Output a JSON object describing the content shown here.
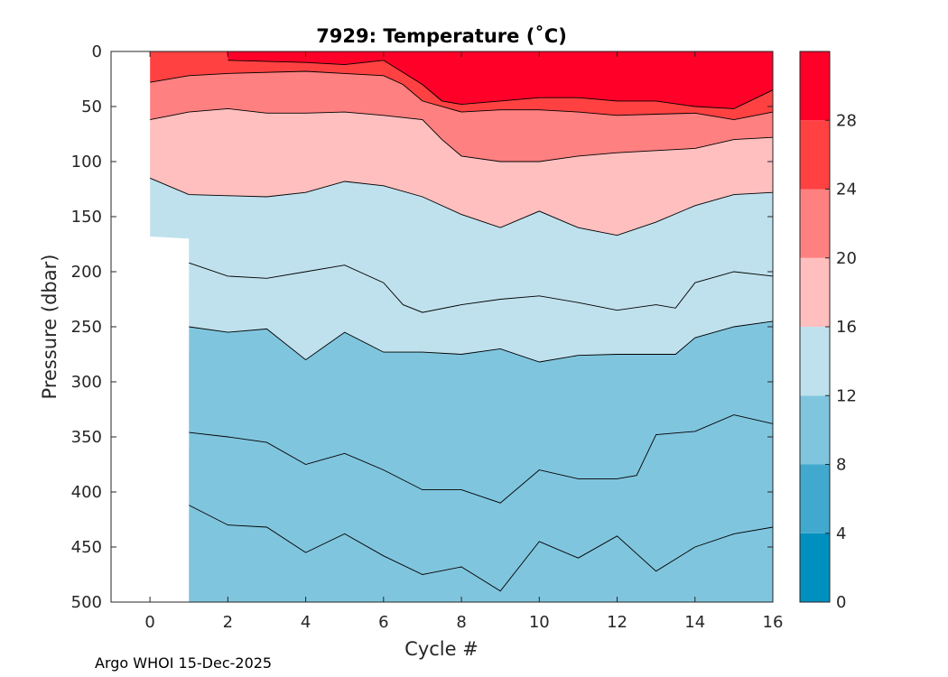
{
  "chart_data": {
    "type": "contourf",
    "title": "7929:  Temperature (˚C)",
    "xlabel": "Cycle #",
    "ylabel": "Pressure (dbar)",
    "xlim": [
      -1,
      16
    ],
    "ylim": [
      500,
      0
    ],
    "xticks": [
      0,
      2,
      4,
      6,
      8,
      10,
      12,
      14,
      16
    ],
    "yticks": [
      0,
      50,
      100,
      150,
      200,
      250,
      300,
      350,
      400,
      450,
      500
    ],
    "colorbar": {
      "levels": [
        0,
        4,
        8,
        12,
        16,
        20,
        24,
        28,
        32
      ],
      "tick_labels": [
        "0",
        "4",
        "8",
        "12",
        "16",
        "20",
        "24",
        "28"
      ],
      "colors": [
        "#0090bf",
        "#41a9cd",
        "#80c5de",
        "#bfe1ed",
        "#ffbfbf",
        "#ff8080",
        "#ff4141",
        "#ff0028"
      ]
    },
    "data_columns": {
      "cycles": [
        0,
        1,
        16
      ],
      "max_pressure_dbar": [
        168,
        500,
        500
      ]
    },
    "isotherms": [
      {
        "level": 26,
        "cycles": [
          2,
          4,
          5,
          6,
          7,
          7.5,
          8,
          9,
          10,
          11,
          12,
          13,
          14,
          15,
          16
        ],
        "pressure": [
          8,
          10,
          12,
          8,
          30,
          45,
          48,
          45,
          42,
          42,
          45,
          45,
          50,
          52,
          35
        ]
      },
      {
        "level": 24,
        "cycles": [
          0,
          1,
          2,
          4,
          5,
          6,
          6.5,
          7,
          8,
          9,
          10,
          11,
          12,
          13,
          14,
          15,
          16
        ],
        "pressure": [
          28,
          22,
          20,
          18,
          20,
          22,
          30,
          45,
          55,
          53,
          53,
          55,
          58,
          57,
          56,
          62,
          55
        ]
      },
      {
        "level": 20,
        "cycles": [
          0,
          1,
          2,
          3,
          4,
          5,
          6,
          7,
          7.5,
          8,
          9,
          10,
          11,
          12,
          13,
          14,
          15,
          16
        ],
        "pressure": [
          62,
          55,
          52,
          56,
          56,
          55,
          58,
          62,
          80,
          95,
          100,
          100,
          95,
          92,
          90,
          88,
          80,
          78
        ]
      },
      {
        "level": 16,
        "cycles": [
          0,
          1,
          2,
          3,
          4,
          5,
          6,
          7,
          8,
          9,
          10,
          11,
          12,
          13,
          14,
          15,
          16
        ],
        "pressure": [
          115,
          130,
          131,
          132,
          128,
          118,
          122,
          132,
          148,
          160,
          145,
          160,
          167,
          155,
          140,
          130,
          128
        ]
      },
      {
        "level": 14,
        "cycles": [
          1,
          2,
          3,
          4,
          5,
          6,
          6.5,
          7,
          8,
          9,
          10,
          11,
          12,
          13,
          13.5,
          14,
          15,
          16
        ],
        "pressure": [
          192,
          204,
          206,
          200,
          194,
          210,
          230,
          237,
          230,
          225,
          222,
          228,
          235,
          230,
          233,
          210,
          200,
          204
        ]
      },
      {
        "level": 12,
        "cycles": [
          1,
          2,
          3,
          4,
          5,
          6,
          7,
          8,
          9,
          10,
          11,
          12,
          13,
          13.5,
          14,
          15,
          16
        ],
        "pressure": [
          250,
          255,
          252,
          280,
          255,
          273,
          273,
          275,
          270,
          282,
          276,
          275,
          275,
          275,
          260,
          250,
          245
        ]
      },
      {
        "level": 10,
        "cycles": [
          1,
          2,
          3,
          4,
          5,
          6,
          7,
          8,
          9,
          10,
          11,
          12,
          12.5,
          13,
          14,
          15,
          16
        ],
        "pressure": [
          346,
          350,
          355,
          375,
          365,
          380,
          398,
          398,
          410,
          380,
          388,
          388,
          385,
          348,
          345,
          330,
          338
        ]
      },
      {
        "level": 9,
        "cycles": [
          1,
          2,
          3,
          4,
          5,
          6,
          7,
          8,
          9,
          10,
          11,
          12,
          13,
          14,
          15,
          16
        ],
        "pressure": [
          412,
          430,
          432,
          455,
          438,
          458,
          475,
          468,
          490,
          445,
          460,
          440,
          472,
          450,
          438,
          432
        ]
      }
    ],
    "footer": "Argo WHOI 15-Dec-2025"
  }
}
